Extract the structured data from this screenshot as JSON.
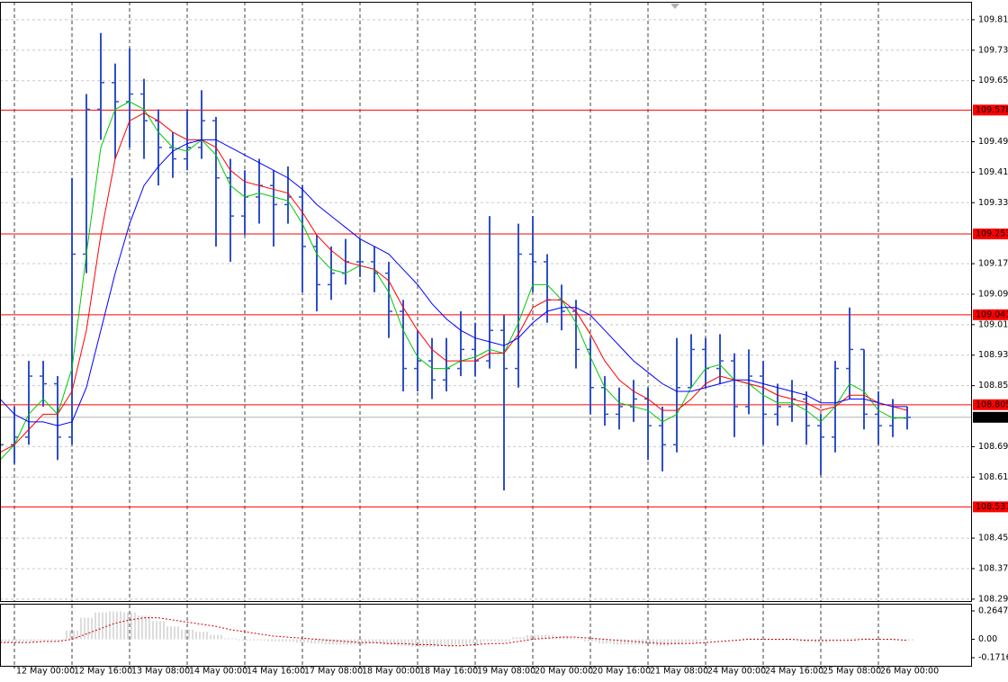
{
  "chart_data": {
    "type": "ohlc",
    "color": "#2f50c8",
    "categories": [
      null,
      "12 May 00:00",
      null,
      null,
      null,
      "12 May 16:00",
      null,
      null,
      null,
      "13 May 08:00",
      null,
      null,
      null,
      "14 May 00:00",
      null,
      null,
      null,
      "14 May 16:00",
      null,
      null,
      null,
      "17 May 08:00",
      null,
      null,
      null,
      "18 May 00:00",
      null,
      null,
      null,
      "18 May 16:00",
      null,
      null,
      null,
      "19 May 08:00",
      null,
      null,
      null,
      "20 May 00:00",
      null,
      null,
      null,
      "20 May 16:00",
      null,
      null,
      null,
      "21 May 08:00",
      null,
      null,
      null,
      "24 May 00:00",
      null,
      null,
      null,
      "24 May 16:00",
      null,
      null,
      null,
      "25 May 08:00",
      null,
      null,
      null,
      "26 May 00:00",
      null,
      null
    ],
    "open": [
      108.8,
      108.7,
      108.72,
      108.88,
      108.86,
      108.72,
      109.2,
      109.58,
      109.65,
      109.6,
      109.62,
      109.55,
      109.48,
      109.45,
      109.48,
      109.55,
      109.4,
      109.3,
      109.35,
      109.38,
      109.33,
      109.35,
      109.22,
      109.12,
      109.15,
      109.18,
      109.18,
      109.15,
      109.05,
      108.9,
      108.92,
      108.87,
      108.9,
      108.95,
      108.92,
      109.0,
      108.9,
      109.2,
      109.18,
      109.08,
      109.05,
      108.95,
      108.85,
      108.78,
      108.8,
      108.82,
      108.75,
      108.7,
      108.85,
      108.95,
      108.9,
      108.92,
      108.8,
      108.88,
      108.78,
      108.8,
      108.82,
      108.75,
      108.72,
      108.9,
      108.95,
      108.78,
      108.75,
      108.77
    ],
    "high": [
      108.85,
      108.8,
      108.92,
      108.92,
      108.88,
      109.4,
      109.62,
      109.78,
      109.7,
      109.74,
      109.66,
      109.58,
      109.52,
      109.58,
      109.63,
      109.56,
      109.45,
      109.42,
      109.45,
      109.42,
      109.43,
      109.38,
      109.25,
      109.22,
      109.24,
      109.24,
      109.22,
      109.18,
      109.08,
      109.0,
      108.98,
      108.98,
      109.05,
      109.02,
      109.3,
      109.04,
      109.28,
      109.3,
      109.2,
      109.12,
      109.08,
      108.98,
      108.88,
      108.85,
      108.87,
      108.85,
      108.8,
      108.98,
      108.99,
      108.98,
      108.99,
      108.94,
      108.95,
      108.92,
      108.86,
      108.87,
      108.84,
      108.78,
      108.92,
      109.06,
      108.95,
      108.84,
      108.82,
      108.8
    ],
    "low": [
      108.59,
      108.65,
      108.7,
      108.8,
      108.66,
      108.7,
      109.15,
      109.5,
      109.45,
      109.48,
      109.45,
      109.38,
      109.4,
      109.42,
      109.45,
      109.22,
      109.18,
      109.25,
      109.28,
      109.22,
      109.28,
      109.1,
      109.05,
      109.08,
      109.12,
      109.14,
      109.1,
      108.98,
      108.84,
      108.84,
      108.82,
      108.84,
      108.88,
      108.88,
      108.9,
      108.58,
      108.85,
      109.1,
      109.02,
      109.0,
      108.9,
      108.78,
      108.75,
      108.74,
      108.76,
      108.66,
      108.63,
      108.68,
      108.85,
      108.85,
      108.86,
      108.72,
      108.78,
      108.7,
      108.75,
      108.76,
      108.7,
      108.62,
      108.68,
      108.82,
      108.74,
      108.7,
      108.72,
      108.74
    ],
    "close": [
      108.7,
      108.72,
      108.88,
      108.86,
      108.72,
      109.2,
      109.58,
      109.65,
      109.6,
      109.62,
      109.55,
      109.48,
      109.45,
      109.48,
      109.55,
      109.4,
      109.3,
      109.35,
      109.38,
      109.33,
      109.35,
      109.22,
      109.12,
      109.15,
      109.18,
      109.18,
      109.15,
      109.05,
      108.9,
      108.92,
      108.87,
      108.9,
      108.95,
      108.92,
      109.0,
      108.9,
      109.2,
      109.18,
      109.08,
      109.05,
      108.95,
      108.85,
      108.78,
      108.8,
      108.82,
      108.75,
      108.7,
      108.85,
      108.95,
      108.9,
      108.92,
      108.8,
      108.88,
      108.78,
      108.8,
      108.82,
      108.75,
      108.72,
      108.9,
      108.95,
      108.78,
      108.75,
      108.77,
      108.772
    ],
    "moving_averages": [
      {
        "color": "#00c800",
        "values": [
          108.66,
          108.7,
          108.78,
          108.82,
          108.78,
          108.9,
          109.2,
          109.48,
          109.58,
          109.6,
          109.58,
          109.52,
          109.48,
          109.47,
          109.5,
          109.46,
          109.38,
          109.35,
          109.36,
          109.35,
          109.34,
          109.28,
          109.2,
          109.16,
          109.15,
          109.17,
          109.16,
          109.1,
          109.0,
          108.93,
          108.9,
          108.9,
          108.92,
          108.93,
          108.95,
          108.94,
          109.02,
          109.12,
          109.12,
          109.08,
          109.02,
          108.93,
          108.85,
          108.81,
          108.8,
          108.79,
          108.76,
          108.78,
          108.85,
          108.9,
          108.91,
          108.87,
          108.86,
          108.83,
          108.81,
          108.81,
          108.79,
          108.76,
          108.8,
          108.86,
          108.84,
          108.79,
          108.77,
          108.77
        ]
      },
      {
        "color": "#ff0000",
        "values": [
          108.68,
          108.7,
          108.74,
          108.78,
          108.78,
          108.84,
          109.0,
          109.25,
          109.45,
          109.55,
          109.57,
          109.55,
          109.52,
          109.5,
          109.5,
          109.48,
          109.42,
          109.39,
          109.38,
          109.37,
          109.36,
          109.31,
          109.25,
          109.21,
          109.18,
          109.17,
          109.16,
          109.13,
          109.06,
          109.0,
          108.95,
          108.92,
          108.92,
          108.92,
          108.94,
          108.94,
          108.99,
          109.06,
          109.08,
          109.08,
          109.05,
          108.99,
          108.92,
          108.87,
          108.84,
          108.82,
          108.79,
          108.79,
          108.82,
          108.86,
          108.88,
          108.87,
          108.86,
          108.85,
          108.83,
          108.82,
          108.81,
          108.79,
          108.8,
          108.83,
          108.83,
          108.81,
          108.8,
          108.79
        ]
      },
      {
        "color": "#0000ff",
        "values": [
          108.82,
          108.78,
          108.76,
          108.76,
          108.75,
          108.76,
          108.85,
          109.0,
          109.15,
          109.28,
          109.38,
          109.43,
          109.47,
          109.49,
          109.5,
          109.5,
          109.48,
          109.46,
          109.44,
          109.42,
          109.4,
          109.37,
          109.33,
          109.3,
          109.27,
          109.24,
          109.22,
          109.2,
          109.16,
          109.12,
          109.07,
          109.03,
          109.0,
          108.98,
          108.97,
          108.96,
          108.98,
          109.02,
          109.05,
          109.06,
          109.06,
          109.04,
          109.0,
          108.96,
          108.92,
          108.89,
          108.86,
          108.84,
          108.84,
          108.85,
          108.86,
          108.87,
          108.87,
          108.86,
          108.85,
          108.84,
          108.83,
          108.81,
          108.81,
          108.82,
          108.82,
          108.81,
          108.8,
          108.8
        ]
      }
    ],
    "ylim": [
      108.29,
      109.862
    ],
    "yticks": [
      109.815,
      109.735,
      109.655,
      109.495,
      109.415,
      109.335,
      109.175,
      109.095,
      109.015,
      108.935,
      108.855,
      108.695,
      108.615,
      108.455,
      108.375,
      108.295
    ],
    "grid": true,
    "levels": {
      "color": "#ff0000",
      "values": [
        109.578,
        109.253,
        109.041,
        108.805,
        108.537
      ]
    },
    "current_price": {
      "color": "#b4b4b4",
      "value": 108.772
    },
    "indicator": {
      "type": "macd",
      "ylim": [
        -0.247,
        0.323
      ],
      "yticks": [
        0.2647,
        {
          "value": 0,
          "label": "0.00"
        },
        -0.1716
      ],
      "histogram": {
        "color": "#b8b8b8",
        "values": [
          -0.03,
          -0.03,
          -0.02,
          -0.01,
          -0.01,
          0.08,
          0.2,
          0.25,
          0.26,
          0.25,
          0.22,
          0.17,
          0.12,
          0.09,
          0.07,
          0.04,
          0.01,
          -0.01,
          -0.01,
          -0.02,
          -0.02,
          -0.03,
          -0.04,
          -0.05,
          -0.05,
          -0.05,
          -0.04,
          -0.05,
          -0.06,
          -0.07,
          -0.07,
          -0.06,
          -0.05,
          -0.04,
          -0.02,
          -0.02,
          0.02,
          0.04,
          0.04,
          0.03,
          0.01,
          -0.02,
          -0.04,
          -0.05,
          -0.05,
          -0.05,
          -0.06,
          -0.05,
          -0.03,
          -0.01,
          0.0,
          0.0,
          0.01,
          0.0,
          -0.01,
          -0.01,
          -0.02,
          -0.03,
          -0.01,
          0.01,
          0.01,
          0.0,
          -0.01,
          -0.01
        ]
      },
      "signal": {
        "color": "#d00000",
        "values": [
          -0.03,
          -0.03,
          -0.03,
          -0.02,
          -0.02,
          0.0,
          0.05,
          0.1,
          0.15,
          0.18,
          0.2,
          0.2,
          0.18,
          0.16,
          0.14,
          0.12,
          0.09,
          0.07,
          0.05,
          0.03,
          0.02,
          0.01,
          0.0,
          -0.01,
          -0.02,
          -0.03,
          -0.03,
          -0.04,
          -0.04,
          -0.05,
          -0.05,
          -0.06,
          -0.06,
          -0.05,
          -0.04,
          -0.04,
          -0.02,
          0.0,
          0.01,
          0.02,
          0.02,
          0.01,
          0.0,
          -0.01,
          -0.02,
          -0.03,
          -0.04,
          -0.04,
          -0.04,
          -0.03,
          -0.02,
          -0.01,
          0.0,
          0.0,
          0.0,
          0.0,
          -0.01,
          -0.01,
          -0.01,
          -0.01,
          0.0,
          0.0,
          0.0,
          -0.01
        ]
      }
    }
  }
}
